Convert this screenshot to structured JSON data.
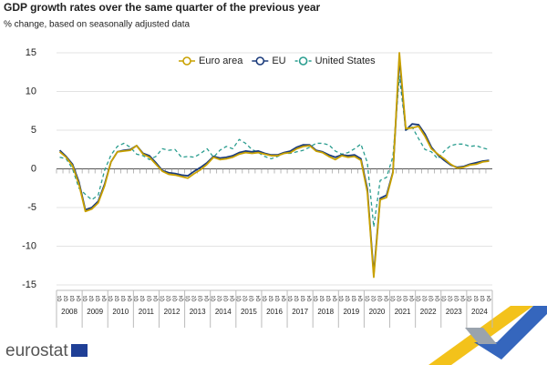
{
  "chart_data": {
    "type": "line",
    "title": "GDP growth rates over the same quarter of the previous year",
    "subtitle": "% change, based on seasonally adjusted data",
    "categories": [
      "Q1",
      "Q2",
      "Q3",
      "Q4",
      "Q1",
      "Q2",
      "Q3",
      "Q4",
      "Q1",
      "Q2",
      "Q3",
      "Q4",
      "Q1",
      "Q2",
      "Q3",
      "Q4",
      "Q1",
      "Q2",
      "Q3",
      "Q4",
      "Q1",
      "Q2",
      "Q3",
      "Q4",
      "Q1",
      "Q2",
      "Q3",
      "Q4",
      "Q1",
      "Q2",
      "Q3",
      "Q4",
      "Q1",
      "Q2",
      "Q3",
      "Q4",
      "Q1",
      "Q2",
      "Q3",
      "Q4",
      "Q1",
      "Q2",
      "Q3",
      "Q4",
      "Q1",
      "Q2",
      "Q3",
      "Q4",
      "Q1",
      "Q2",
      "Q3",
      "Q4",
      "Q1",
      "Q2",
      "Q3",
      "Q4",
      "Q1",
      "Q2",
      "Q3",
      "Q4",
      "Q1",
      "Q2",
      "Q3",
      "Q4",
      "Q1",
      "Q2",
      "Q3",
      "Q4"
    ],
    "years": [
      "2008",
      "2009",
      "2010",
      "2011",
      "2012",
      "2013",
      "2014",
      "2015",
      "2016",
      "2017",
      "2018",
      "2019",
      "2020",
      "2021",
      "2022",
      "2023",
      "2024"
    ],
    "series": [
      {
        "name": "Euro area",
        "color": "#c9a100",
        "dashed": false,
        "values": [
          2.2,
          1.5,
          0.4,
          -2.0,
          -5.5,
          -5.2,
          -4.4,
          -2.2,
          0.9,
          2.2,
          2.3,
          2.4,
          3.0,
          1.9,
          1.5,
          0.6,
          -0.3,
          -0.7,
          -0.8,
          -1.0,
          -1.2,
          -0.6,
          -0.1,
          0.6,
          1.5,
          1.2,
          1.3,
          1.5,
          1.9,
          2.1,
          2.0,
          2.1,
          1.9,
          1.7,
          1.7,
          2.0,
          2.1,
          2.6,
          2.9,
          3.0,
          2.3,
          2.1,
          1.6,
          1.2,
          1.7,
          1.5,
          1.6,
          1.1,
          -3.0,
          -14.0,
          -4.0,
          -3.7,
          -0.5,
          15.0,
          5.2,
          5.3,
          5.5,
          4.2,
          2.6,
          1.9,
          1.3,
          0.6,
          0.1,
          0.2,
          0.5,
          0.6,
          0.9,
          1.0
        ]
      },
      {
        "name": "EU",
        "color": "#1b3b7b",
        "dashed": false,
        "values": [
          2.4,
          1.6,
          0.6,
          -1.7,
          -5.3,
          -5.0,
          -4.2,
          -2.0,
          0.9,
          2.2,
          2.4,
          2.5,
          3.0,
          2.0,
          1.7,
          0.8,
          -0.2,
          -0.5,
          -0.6,
          -0.8,
          -0.9,
          -0.3,
          0.2,
          0.8,
          1.6,
          1.4,
          1.5,
          1.7,
          2.1,
          2.3,
          2.2,
          2.3,
          2.0,
          1.8,
          1.8,
          2.1,
          2.3,
          2.8,
          3.1,
          3.1,
          2.4,
          2.2,
          1.8,
          1.5,
          1.8,
          1.7,
          1.8,
          1.3,
          -2.6,
          -13.6,
          -3.8,
          -3.4,
          -0.4,
          14.3,
          5.0,
          5.8,
          5.7,
          4.5,
          2.8,
          1.8,
          1.1,
          0.5,
          0.2,
          0.3,
          0.6,
          0.8,
          1.0,
          1.1
        ]
      },
      {
        "name": "United States",
        "color": "#2a9d8f",
        "dashed": true,
        "values": [
          1.5,
          1.3,
          0.0,
          -2.5,
          -3.3,
          -4.0,
          -3.4,
          -0.2,
          1.8,
          2.9,
          3.3,
          2.8,
          1.9,
          1.7,
          1.2,
          1.6,
          2.6,
          2.4,
          2.5,
          1.5,
          1.6,
          1.5,
          2.0,
          2.6,
          1.5,
          2.4,
          2.9,
          2.6,
          3.8,
          3.3,
          2.5,
          2.1,
          1.6,
          1.3,
          1.6,
          2.0,
          2.0,
          2.2,
          2.4,
          2.8,
          3.3,
          3.3,
          3.1,
          2.3,
          1.9,
          2.1,
          2.6,
          3.2,
          0.8,
          -7.5,
          -1.5,
          -1.1,
          1.6,
          12.0,
          5.0,
          5.4,
          3.9,
          2.5,
          2.2,
          1.3,
          2.3,
          3.0,
          3.2,
          3.2,
          2.9,
          3.0,
          2.7,
          2.5
        ]
      }
    ],
    "ylim": [
      -15,
      15
    ],
    "yticks": [
      -15,
      -10,
      -5,
      0,
      5,
      10,
      15
    ],
    "grid": true
  },
  "branding": {
    "logo": "eurostat"
  }
}
